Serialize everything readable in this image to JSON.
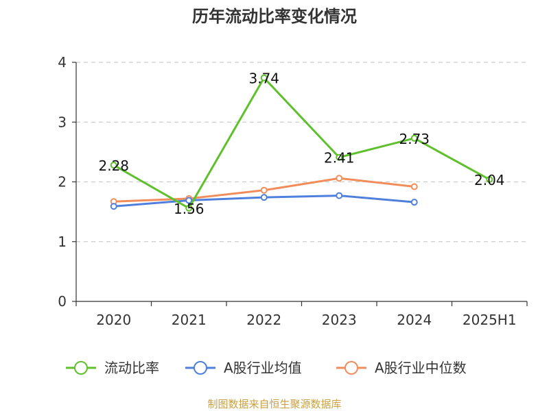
{
  "chart_data": {
    "type": "line",
    "title": "历年流动比率变化情况",
    "categories": [
      "2020",
      "2021",
      "2022",
      "2023",
      "2024",
      "2025H1"
    ],
    "ylim": [
      0,
      4
    ],
    "yticks": [
      0,
      1,
      2,
      3,
      4
    ],
    "grid": true,
    "legend_position": "bottom",
    "series": [
      {
        "name": "流动比率",
        "color": "#5ec02b",
        "values": [
          2.28,
          1.56,
          3.74,
          2.41,
          2.73,
          2.04
        ],
        "labels": [
          "2.28",
          "1.56",
          "3.74",
          "2.41",
          "2.73",
          "2.04"
        ]
      },
      {
        "name": "A股行业均值",
        "color": "#4f7fdc",
        "values": [
          1.59,
          1.69,
          1.74,
          1.77,
          1.66,
          null
        ]
      },
      {
        "name": "A股行业中位数",
        "color": "#f28d5b",
        "values": [
          1.67,
          1.72,
          1.86,
          2.06,
          1.92,
          null
        ]
      }
    ]
  },
  "source": {
    "text": "制图数据来自恒生聚源数据库",
    "color": "#c9a042"
  }
}
